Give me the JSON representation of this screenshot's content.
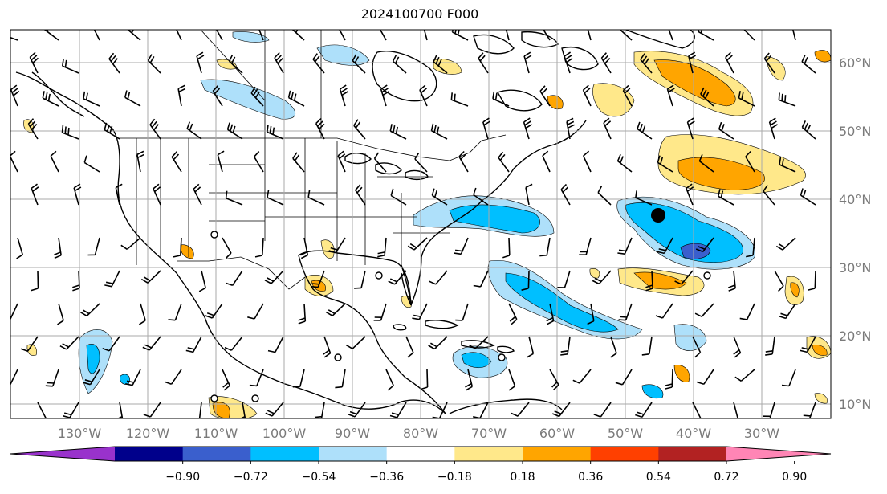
{
  "title": "2024100700 F000",
  "lat_labels": [
    "60°N",
    "50°N",
    "40°N",
    "30°N",
    "20°N",
    "10°N"
  ],
  "lon_labels": [
    "130°W",
    "120°W",
    "110°W",
    "100°W",
    "90°W",
    "80°W",
    "70°W",
    "60°W",
    "50°W",
    "40°W",
    "30°W"
  ],
  "colorbar": {
    "ticks": [
      "−0.90",
      "−0.72",
      "−0.54",
      "−0.36",
      "−0.18",
      "0.18",
      "0.36",
      "0.54",
      "0.72",
      "0.90"
    ],
    "colors": [
      "#9932cc",
      "#00008b",
      "#3a5fcd",
      "#00bfff",
      "#aee0fa",
      "#ffffff",
      "#ffe88a",
      "#ffa500",
      "#ff4000",
      "#b22222",
      "#ff85b5"
    ]
  }
}
